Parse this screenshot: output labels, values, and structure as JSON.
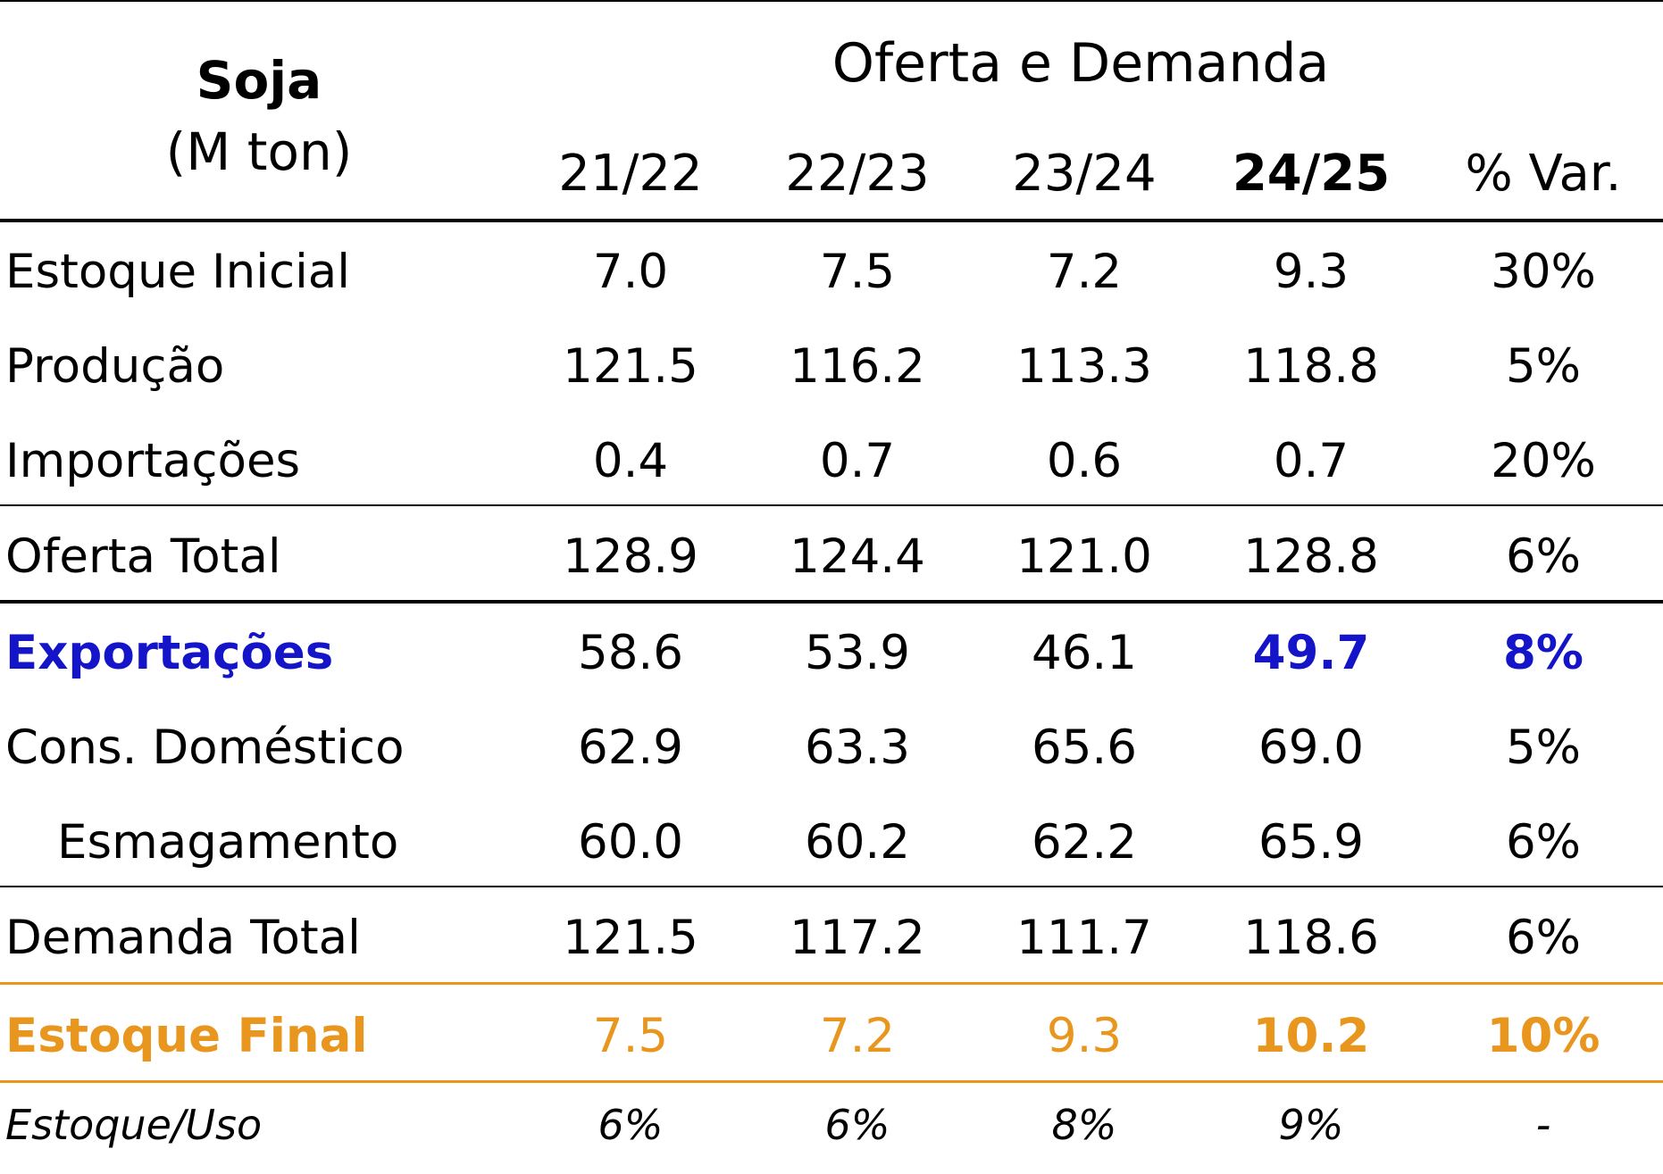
{
  "table": {
    "corner_title": "Soja",
    "corner_unit": "(M ton)",
    "group_header": "Oferta e Demanda",
    "columns": [
      "21/22",
      "22/23",
      "23/24",
      "24/25",
      "% Var."
    ],
    "rows": [
      {
        "label": "Estoque Inicial",
        "values": [
          "7.0",
          "7.5",
          "7.2",
          "9.3",
          "30%"
        ]
      },
      {
        "label": "Produção",
        "values": [
          "121.5",
          "116.2",
          "113.3",
          "118.8",
          "5%"
        ]
      },
      {
        "label": "Importações",
        "values": [
          "0.4",
          "0.7",
          "0.6",
          "0.7",
          "20%"
        ]
      },
      {
        "label": "Oferta Total",
        "values": [
          "128.9",
          "124.4",
          "121.0",
          "128.8",
          "6%"
        ]
      },
      {
        "label": "Exportações",
        "values": [
          "58.6",
          "53.9",
          "46.1",
          "49.7",
          "8%"
        ]
      },
      {
        "label": "Cons. Doméstico",
        "values": [
          "62.9",
          "63.3",
          "65.6",
          "69.0",
          "5%"
        ]
      },
      {
        "label": "Esmagamento",
        "values": [
          "60.0",
          "60.2",
          "62.2",
          "65.9",
          "6%"
        ]
      },
      {
        "label": "Demanda Total",
        "values": [
          "121.5",
          "117.2",
          "111.7",
          "118.6",
          "6%"
        ]
      },
      {
        "label": "Estoque Final",
        "values": [
          "7.5",
          "7.2",
          "9.3",
          "10.2",
          "10%"
        ]
      },
      {
        "label": "Estoque/Uso",
        "values": [
          "6%",
          "6%",
          "8%",
          "9%",
          "-"
        ]
      }
    ]
  },
  "colors": {
    "text": "#000000",
    "exports_highlight": "#1414c8",
    "final_stock_highlight": "#e8961e"
  }
}
